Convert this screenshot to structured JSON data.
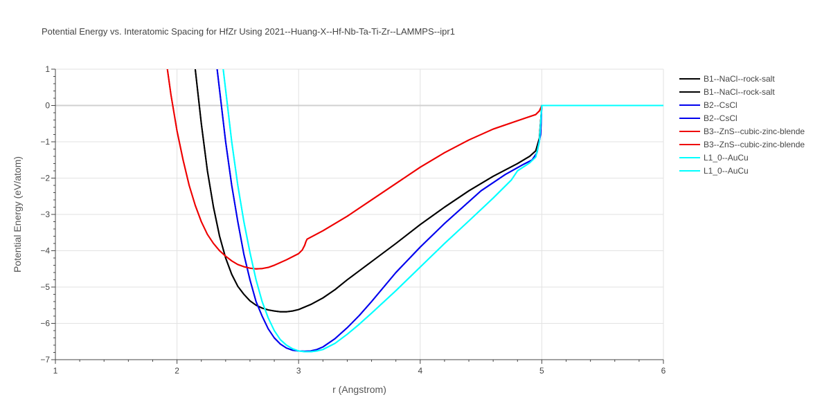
{
  "chart_data": {
    "type": "line",
    "title": "Potential Energy vs. Interatomic Spacing for HfZr Using 2021--Huang-X--Hf-Nb-Ta-Ti-Zr--LAMMPS--ipr1",
    "xlabel": "r (Angstrom)",
    "ylabel": "Potential Energy (eV/atom)",
    "xlim": [
      1,
      6
    ],
    "ylim": [
      -7,
      1
    ],
    "xticks": [
      1,
      2,
      3,
      4,
      5,
      6
    ],
    "yticks": [
      1,
      0,
      -1,
      -2,
      -3,
      -4,
      -5,
      -6,
      -7
    ],
    "grid": true,
    "legend_position": "right",
    "series": [
      {
        "name": "B1--NaCl--rock-salt",
        "color": "#000000",
        "x": [
          2.1,
          2.15,
          2.2,
          2.25,
          2.3,
          2.35,
          2.4,
          2.45,
          2.5,
          2.55,
          2.6,
          2.65,
          2.7,
          2.75,
          2.8,
          2.85,
          2.9,
          2.95,
          3.0,
          3.1,
          3.2,
          3.3,
          3.4,
          3.5,
          3.6,
          3.8,
          4.0,
          4.2,
          4.4,
          4.6,
          4.8,
          4.9,
          4.95,
          4.98,
          5.0,
          5.5,
          6.0
        ],
        "y": [
          2.5,
          1.0,
          -0.5,
          -1.8,
          -2.8,
          -3.6,
          -4.2,
          -4.65,
          -4.98,
          -5.2,
          -5.38,
          -5.5,
          -5.58,
          -5.63,
          -5.66,
          -5.68,
          -5.68,
          -5.66,
          -5.62,
          -5.48,
          -5.3,
          -5.07,
          -4.8,
          -4.55,
          -4.3,
          -3.8,
          -3.28,
          -2.8,
          -2.35,
          -1.95,
          -1.6,
          -1.4,
          -1.25,
          -0.9,
          0.0,
          0.0,
          0.0
        ]
      },
      {
        "name": "B1--NaCl--rock-salt",
        "color": "#000000",
        "x": [
          2.1,
          2.15,
          2.2,
          2.25,
          2.3,
          2.35,
          2.4,
          2.45,
          2.5,
          2.55,
          2.6,
          2.65,
          2.7,
          2.75,
          2.8,
          2.85,
          2.9,
          2.95,
          3.0,
          3.1,
          3.2,
          3.3,
          3.4,
          3.5,
          3.6,
          3.8,
          4.0,
          4.2,
          4.4,
          4.6,
          4.8,
          4.9,
          4.95,
          4.98,
          5.0,
          5.5,
          6.0
        ],
        "y": [
          2.5,
          1.0,
          -0.5,
          -1.8,
          -2.8,
          -3.6,
          -4.2,
          -4.65,
          -4.98,
          -5.2,
          -5.38,
          -5.5,
          -5.58,
          -5.63,
          -5.66,
          -5.68,
          -5.68,
          -5.66,
          -5.62,
          -5.48,
          -5.3,
          -5.07,
          -4.8,
          -4.55,
          -4.3,
          -3.8,
          -3.28,
          -2.8,
          -2.35,
          -1.95,
          -1.6,
          -1.4,
          -1.25,
          -0.9,
          0.0,
          0.0,
          0.0
        ]
      },
      {
        "name": "B2--CsCl",
        "color": "#0000ee",
        "x": [
          2.3,
          2.33,
          2.4,
          2.45,
          2.5,
          2.55,
          2.6,
          2.65,
          2.7,
          2.75,
          2.8,
          2.85,
          2.9,
          2.95,
          3.0,
          3.05,
          3.1,
          3.15,
          3.2,
          3.3,
          3.4,
          3.5,
          3.6,
          3.8,
          4.0,
          4.2,
          4.3,
          4.35,
          4.5,
          4.7,
          4.85,
          4.92,
          4.96,
          4.99,
          5.0,
          5.5,
          6.0
        ],
        "y": [
          1.5,
          1.0,
          -1.0,
          -2.2,
          -3.2,
          -4.1,
          -4.8,
          -5.4,
          -5.8,
          -6.15,
          -6.4,
          -6.57,
          -6.68,
          -6.74,
          -6.76,
          -6.77,
          -6.76,
          -6.72,
          -6.65,
          -6.42,
          -6.12,
          -5.78,
          -5.4,
          -4.6,
          -3.9,
          -3.25,
          -2.95,
          -2.8,
          -2.35,
          -1.9,
          -1.62,
          -1.5,
          -1.3,
          -0.8,
          0.0,
          0.0,
          0.0
        ]
      },
      {
        "name": "B2--CsCl",
        "color": "#0000ee",
        "x": [
          2.3,
          2.33,
          2.4,
          2.45,
          2.5,
          2.55,
          2.6,
          2.65,
          2.7,
          2.75,
          2.8,
          2.85,
          2.9,
          2.95,
          3.0,
          3.05,
          3.1,
          3.15,
          3.2,
          3.3,
          3.4,
          3.5,
          3.6,
          3.8,
          4.0,
          4.2,
          4.3,
          4.35,
          4.5,
          4.7,
          4.85,
          4.92,
          4.96,
          4.99,
          5.0,
          5.5,
          6.0
        ],
        "y": [
          1.5,
          1.0,
          -1.0,
          -2.2,
          -3.2,
          -4.1,
          -4.8,
          -5.4,
          -5.8,
          -6.15,
          -6.4,
          -6.57,
          -6.68,
          -6.74,
          -6.76,
          -6.77,
          -6.76,
          -6.72,
          -6.65,
          -6.42,
          -6.12,
          -5.78,
          -5.4,
          -4.6,
          -3.9,
          -3.25,
          -2.95,
          -2.8,
          -2.35,
          -1.9,
          -1.62,
          -1.5,
          -1.3,
          -0.8,
          0.0,
          0.0,
          0.0
        ]
      },
      {
        "name": "B3--ZnS--cubic-zinc-blende",
        "color": "#ee0000",
        "x": [
          1.9,
          1.95,
          2.0,
          2.05,
          2.1,
          2.15,
          2.2,
          2.25,
          2.3,
          2.35,
          2.4,
          2.45,
          2.5,
          2.55,
          2.6,
          2.65,
          2.7,
          2.75,
          2.8,
          2.9,
          3.0,
          3.03,
          3.05,
          3.06,
          3.07,
          3.2,
          3.4,
          3.6,
          3.8,
          4.0,
          4.2,
          4.4,
          4.6,
          4.8,
          4.95,
          4.98,
          5.0,
          5.5,
          6.0
        ],
        "y": [
          1.5,
          0.3,
          -0.7,
          -1.5,
          -2.2,
          -2.75,
          -3.2,
          -3.55,
          -3.8,
          -4.0,
          -4.15,
          -4.28,
          -4.38,
          -4.44,
          -4.48,
          -4.5,
          -4.49,
          -4.46,
          -4.4,
          -4.25,
          -4.08,
          -3.98,
          -3.85,
          -3.75,
          -3.68,
          -3.45,
          -3.05,
          -2.6,
          -2.15,
          -1.7,
          -1.3,
          -0.95,
          -0.65,
          -0.42,
          -0.25,
          -0.15,
          0.0,
          0.0,
          0.0
        ]
      },
      {
        "name": "B3--ZnS--cubic-zinc-blende",
        "color": "#ee0000",
        "x": [
          1.9,
          1.95,
          2.0,
          2.05,
          2.1,
          2.15,
          2.2,
          2.25,
          2.3,
          2.35,
          2.4,
          2.45,
          2.5,
          2.55,
          2.6,
          2.65,
          2.7,
          2.75,
          2.8,
          2.9,
          3.0,
          3.03,
          3.05,
          3.06,
          3.07,
          3.2,
          3.4,
          3.6,
          3.8,
          4.0,
          4.2,
          4.4,
          4.6,
          4.8,
          4.95,
          4.98,
          5.0,
          5.5,
          6.0
        ],
        "y": [
          1.5,
          0.3,
          -0.7,
          -1.5,
          -2.2,
          -2.75,
          -3.2,
          -3.55,
          -3.8,
          -4.0,
          -4.15,
          -4.28,
          -4.38,
          -4.44,
          -4.48,
          -4.5,
          -4.49,
          -4.46,
          -4.4,
          -4.25,
          -4.08,
          -3.98,
          -3.85,
          -3.75,
          -3.68,
          -3.45,
          -3.05,
          -2.6,
          -2.15,
          -1.7,
          -1.3,
          -0.95,
          -0.65,
          -0.42,
          -0.25,
          -0.15,
          0.0,
          0.0,
          0.0
        ]
      },
      {
        "name": "L1_0--AuCu",
        "color": "#00ffff",
        "x": [
          2.35,
          2.38,
          2.45,
          2.5,
          2.55,
          2.6,
          2.65,
          2.7,
          2.75,
          2.8,
          2.85,
          2.9,
          2.95,
          3.0,
          3.05,
          3.1,
          3.15,
          3.2,
          3.3,
          3.4,
          3.5,
          3.6,
          3.8,
          4.0,
          4.2,
          4.4,
          4.6,
          4.75,
          4.8,
          4.9,
          4.95,
          4.98,
          5.0,
          5.5,
          6.0
        ],
        "y": [
          1.5,
          1.0,
          -1.0,
          -2.2,
          -3.2,
          -4.05,
          -4.8,
          -5.4,
          -5.85,
          -6.2,
          -6.45,
          -6.6,
          -6.7,
          -6.76,
          -6.78,
          -6.78,
          -6.76,
          -6.72,
          -6.55,
          -6.3,
          -6.02,
          -5.72,
          -5.1,
          -4.45,
          -3.8,
          -3.18,
          -2.55,
          -2.05,
          -1.8,
          -1.58,
          -1.42,
          -1.0,
          0.0,
          0.0,
          0.0
        ]
      },
      {
        "name": "L1_0--AuCu",
        "color": "#00ffff",
        "x": [
          2.35,
          2.38,
          2.45,
          2.5,
          2.55,
          2.6,
          2.65,
          2.7,
          2.75,
          2.8,
          2.85,
          2.9,
          2.95,
          3.0,
          3.05,
          3.1,
          3.15,
          3.2,
          3.3,
          3.4,
          3.5,
          3.6,
          3.8,
          4.0,
          4.2,
          4.4,
          4.6,
          4.75,
          4.8,
          4.9,
          4.95,
          4.98,
          5.0,
          5.5,
          6.0
        ],
        "y": [
          1.5,
          1.0,
          -1.0,
          -2.2,
          -3.2,
          -4.05,
          -4.8,
          -5.4,
          -5.85,
          -6.2,
          -6.45,
          -6.6,
          -6.7,
          -6.76,
          -6.78,
          -6.78,
          -6.76,
          -6.72,
          -6.55,
          -6.3,
          -6.02,
          -5.72,
          -5.1,
          -4.45,
          -3.8,
          -3.18,
          -2.55,
          -2.05,
          -1.8,
          -1.58,
          -1.42,
          -1.0,
          0.0,
          0.0,
          0.0
        ]
      }
    ]
  }
}
